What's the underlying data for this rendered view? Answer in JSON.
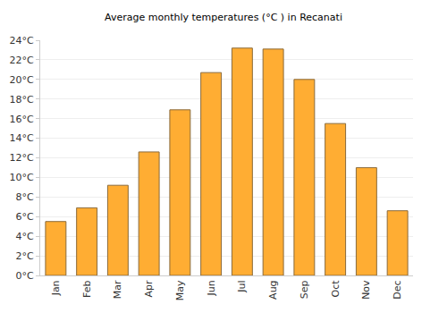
{
  "chart_data": {
    "type": "bar",
    "title": "Average monthly temperatures (°C ) in Recanati",
    "categories": [
      "Jan",
      "Feb",
      "Mar",
      "Apr",
      "May",
      "Jun",
      "Jul",
      "Aug",
      "Sep",
      "Oct",
      "Nov",
      "Dec"
    ],
    "values": [
      5.5,
      6.9,
      9.2,
      12.6,
      16.9,
      20.7,
      23.2,
      23.1,
      20.0,
      15.5,
      11.0,
      6.6
    ],
    "color": "#ffad33",
    "ylim": [
      0,
      24
    ],
    "yticks": [
      {
        "value": 0,
        "label": "0°C"
      },
      {
        "value": 2,
        "label": "2°C"
      },
      {
        "value": 4,
        "label": "4°C"
      },
      {
        "value": 6,
        "label": "6°C"
      },
      {
        "value": 8,
        "label": "8°C"
      },
      {
        "value": 10,
        "label": "10°C"
      },
      {
        "value": 12,
        "label": "12°C"
      },
      {
        "value": 14,
        "label": "14°C"
      },
      {
        "value": 16,
        "label": "16°C"
      },
      {
        "value": 18,
        "label": "18°C"
      },
      {
        "value": 20,
        "label": "20°C"
      },
      {
        "value": 22,
        "label": "22°C"
      },
      {
        "value": 24,
        "label": "24°C"
      }
    ],
    "grid": true
  }
}
